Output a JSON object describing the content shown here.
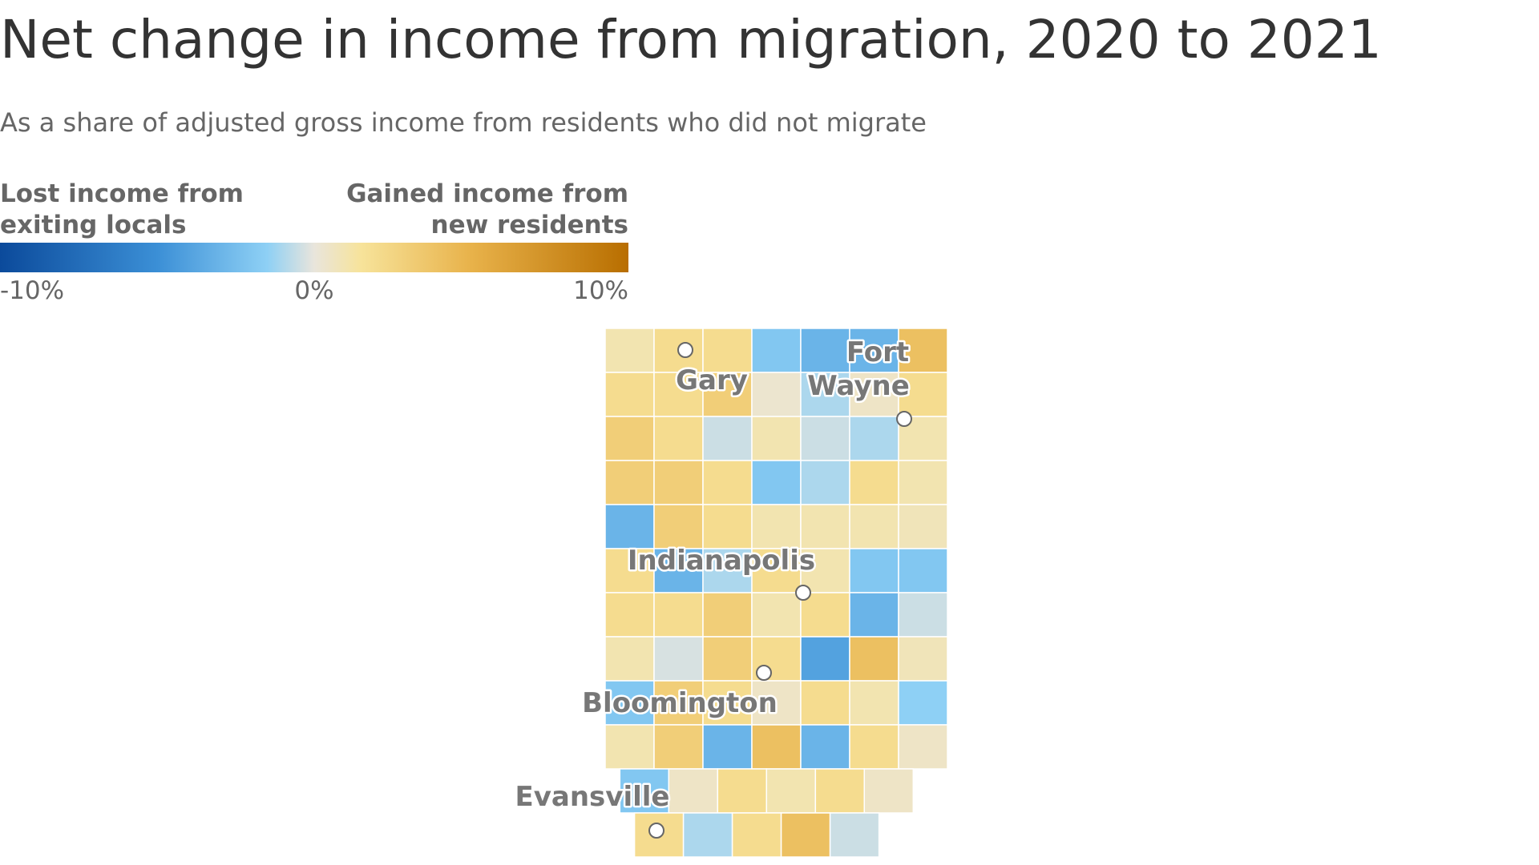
{
  "chart_data": {
    "type": "choropleth",
    "title": "Net change in income from migration, 2020 to 2021",
    "subtitle": "As a share of adjusted gross income from residents who did not migrate",
    "legend_left": [
      "Lost income from",
      "exiting locals"
    ],
    "legend_right": [
      "Gained income from",
      "new residents"
    ],
    "scale_lim": [
      -10,
      10
    ],
    "scale_ticks": [
      {
        "value": -10,
        "label": "-10%"
      },
      {
        "value": 0,
        "label": "0%"
      },
      {
        "value": 10,
        "label": "10%"
      }
    ],
    "color_stops": [
      {
        "value": -10,
        "color": "#0b4a9b"
      },
      {
        "value": -5,
        "color": "#3b8fd6"
      },
      {
        "value": -1.5,
        "color": "#8ed0f5"
      },
      {
        "value": 0,
        "color": "#e9e5dc"
      },
      {
        "value": 1.5,
        "color": "#f7e39a"
      },
      {
        "value": 5,
        "color": "#e8b24a"
      },
      {
        "value": 10,
        "color": "#b86e00"
      }
    ],
    "counties": {
      "values": [
        1,
        2,
        2,
        -2,
        -3,
        -3,
        4,
        2,
        2,
        3,
        0.3,
        -1,
        0.5,
        2,
        3,
        2,
        -0.5,
        1,
        -0.5,
        -1,
        1,
        3,
        3,
        2,
        -2,
        -1,
        2,
        1,
        -3,
        3,
        2,
        1,
        1,
        1,
        0.8,
        2,
        -3,
        -1,
        2,
        1,
        -2,
        -2,
        2,
        2,
        3,
        1,
        2,
        -3,
        -0.5,
        1,
        -0.3,
        3,
        2,
        -4,
        4,
        0.8,
        -2,
        3,
        2,
        0.5,
        2,
        1,
        -1.5,
        1,
        3,
        -3,
        4,
        -3,
        2,
        0.5,
        -2,
        0.5,
        2,
        1,
        2,
        0.5,
        2,
        -1,
        2,
        4,
        -0.5
      ]
    },
    "cities": [
      {
        "label_lines": [
          "Gary"
        ]
      },
      {
        "label_lines": [
          "Fort",
          "Wayne"
        ]
      },
      {
        "label_lines": [
          "Indianapolis"
        ]
      },
      {
        "label_lines": [
          "Bloomington"
        ]
      },
      {
        "label_lines": [
          "Evansville"
        ]
      }
    ]
  }
}
